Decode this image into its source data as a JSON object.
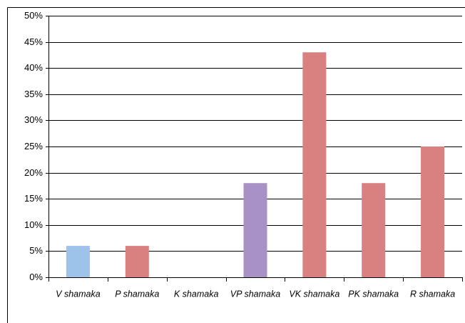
{
  "chart_data": {
    "type": "bar",
    "categories": [
      "V shamaka",
      "P shamaka",
      "K shamaka",
      "VP shamaka",
      "VK shamaka",
      "PK shamaka",
      "R shamaka"
    ],
    "values": [
      6,
      6,
      0,
      18,
      43,
      18,
      25
    ],
    "colors": [
      "#9dc3ea",
      "#d98080",
      "#d98080",
      "#a891c4",
      "#d98080",
      "#d98080",
      "#d98080"
    ],
    "ylim": [
      0,
      50
    ],
    "yticks": [
      {
        "value": 0,
        "label": "0%"
      },
      {
        "value": 5,
        "label": "5%"
      },
      {
        "value": 10,
        "label": "10%"
      },
      {
        "value": 15,
        "label": "15%"
      },
      {
        "value": 20,
        "label": "20%"
      },
      {
        "value": 25,
        "label": "25%"
      },
      {
        "value": 30,
        "label": "30%"
      },
      {
        "value": 35,
        "label": "35%"
      },
      {
        "value": 40,
        "label": "40%"
      },
      {
        "value": 45,
        "label": "45%"
      },
      {
        "value": 50,
        "label": "50%"
      }
    ],
    "grid": true
  }
}
